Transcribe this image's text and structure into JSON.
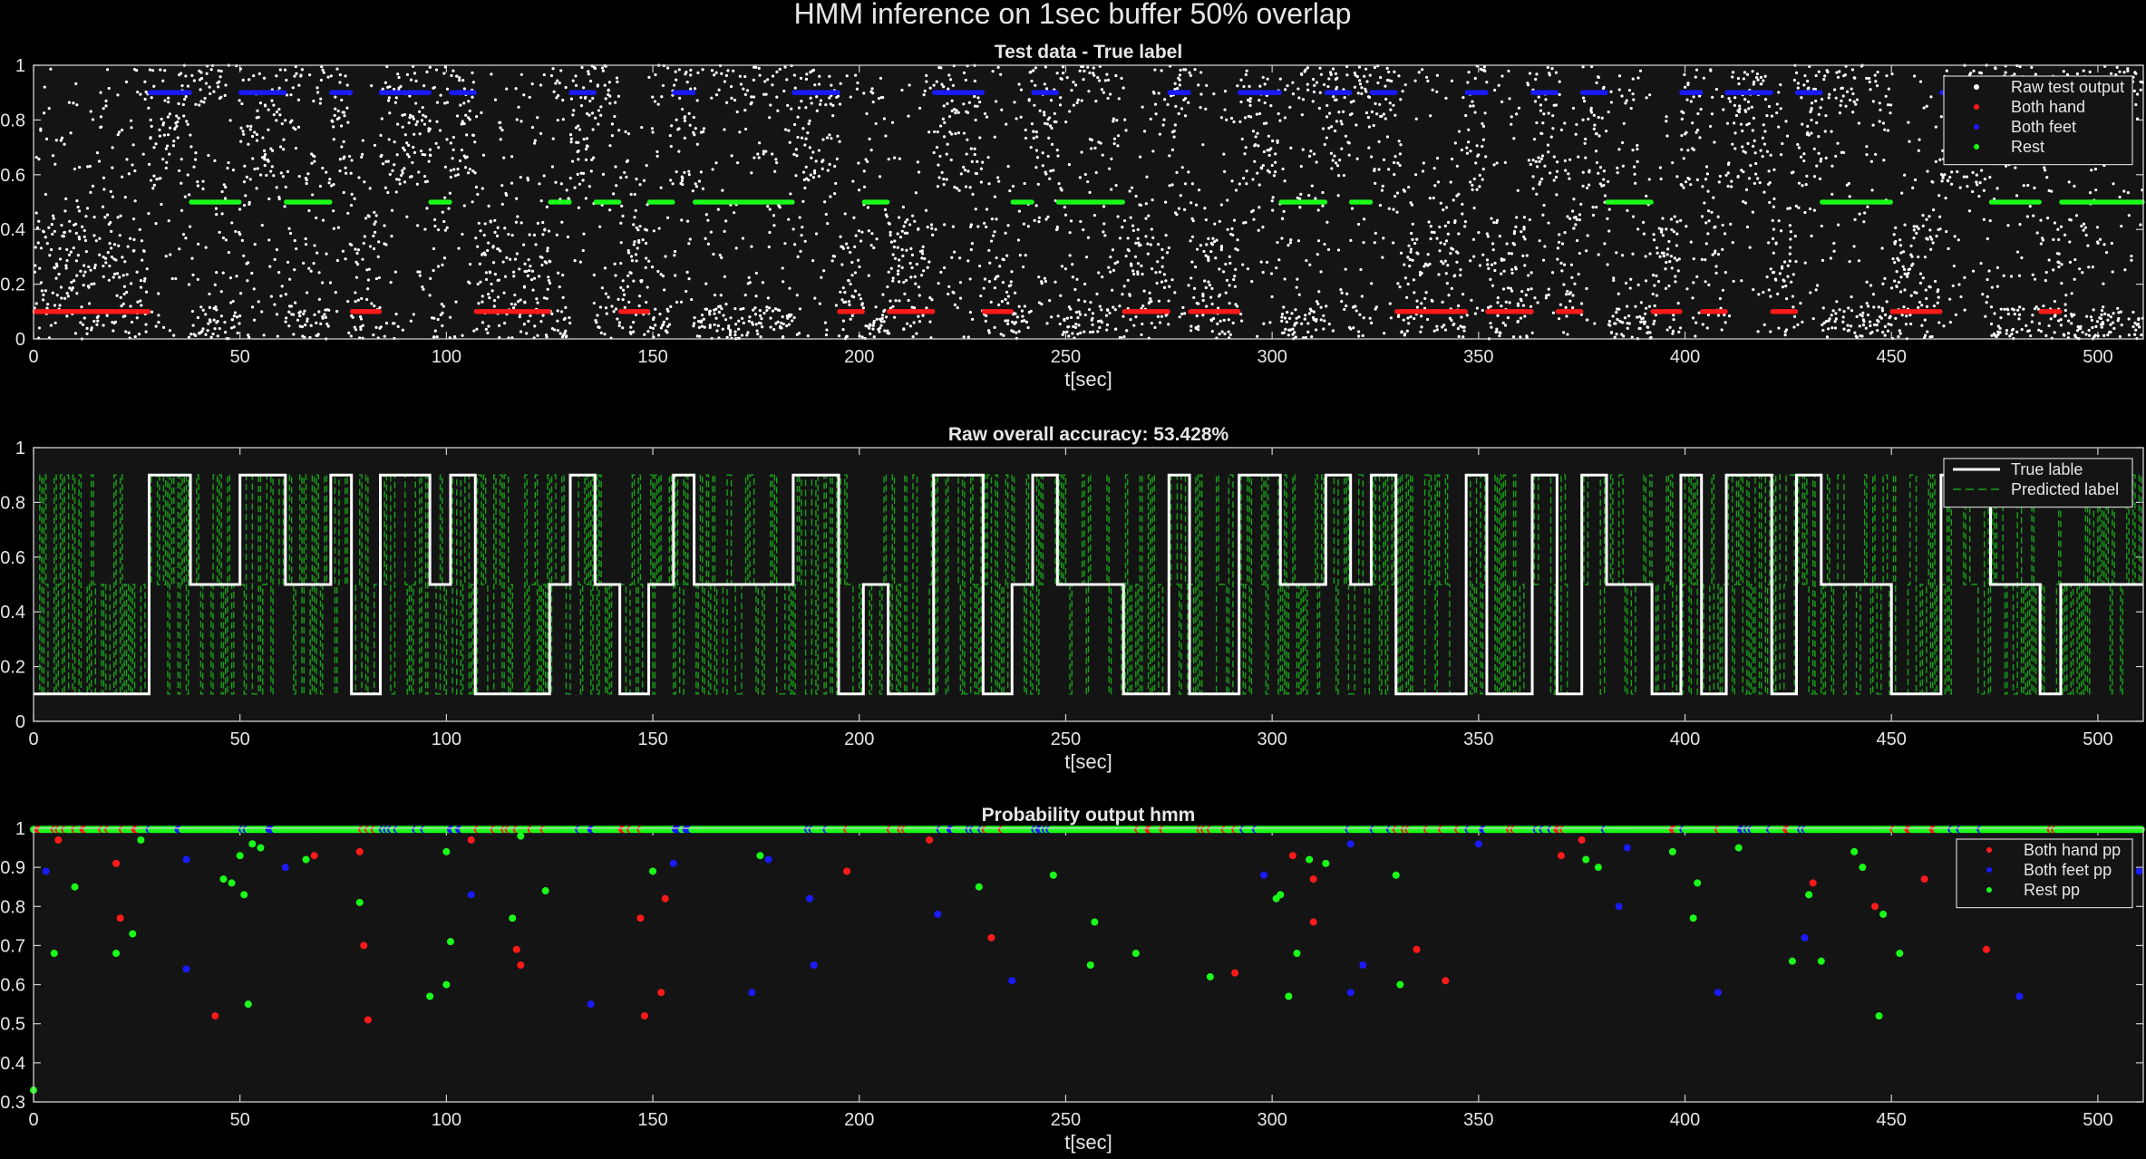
{
  "figure": {
    "title": "HMM inference on 1sec buffer 50% overlap",
    "background": "#000000",
    "axes_background": "#141414",
    "axes_color": "#cfcfcf",
    "text_color": "#e6e6e6"
  },
  "chart_data": [
    {
      "type": "scatter",
      "title": "Test data - True label",
      "xlabel": "t[sec]",
      "ylabel": "",
      "xlim": [
        0,
        511
      ],
      "ylim": [
        0,
        1
      ],
      "xticks": [
        0,
        50,
        100,
        150,
        200,
        250,
        300,
        350,
        400,
        450,
        500
      ],
      "yticks": [
        0,
        0.2,
        0.4,
        0.6,
        0.8,
        1
      ],
      "ytick_labels": [
        "0",
        "0.2",
        "0.4",
        "0.6",
        "0.8",
        "1"
      ],
      "grid": false,
      "legend_position": "top-right",
      "label_values": {
        "Both hand": 0.1,
        "Both feet": 0.9,
        "Rest": 0.5
      },
      "segments": [
        {
          "label": "Both hand",
          "start": 0,
          "end": 28
        },
        {
          "label": "Both feet",
          "start": 28,
          "end": 38
        },
        {
          "label": "Rest",
          "start": 38,
          "end": 50
        },
        {
          "label": "Both feet",
          "start": 50,
          "end": 61
        },
        {
          "label": "Rest",
          "start": 61,
          "end": 72
        },
        {
          "label": "Both feet",
          "start": 72,
          "end": 77
        },
        {
          "label": "Both hand",
          "start": 77,
          "end": 84
        },
        {
          "label": "Both feet",
          "start": 84,
          "end": 96
        },
        {
          "label": "Rest",
          "start": 96,
          "end": 101
        },
        {
          "label": "Both feet",
          "start": 101,
          "end": 107
        },
        {
          "label": "Both hand",
          "start": 107,
          "end": 125
        },
        {
          "label": "Rest",
          "start": 125,
          "end": 130
        },
        {
          "label": "Both feet",
          "start": 130,
          "end": 136
        },
        {
          "label": "Rest",
          "start": 136,
          "end": 142
        },
        {
          "label": "Both hand",
          "start": 142,
          "end": 149
        },
        {
          "label": "Rest",
          "start": 149,
          "end": 155
        },
        {
          "label": "Both feet",
          "start": 155,
          "end": 160
        },
        {
          "label": "Rest",
          "start": 160,
          "end": 184
        },
        {
          "label": "Both feet",
          "start": 184,
          "end": 195
        },
        {
          "label": "Both hand",
          "start": 195,
          "end": 201
        },
        {
          "label": "Rest",
          "start": 201,
          "end": 207
        },
        {
          "label": "Both hand",
          "start": 207,
          "end": 218
        },
        {
          "label": "Both feet",
          "start": 218,
          "end": 230
        },
        {
          "label": "Both hand",
          "start": 230,
          "end": 237
        },
        {
          "label": "Rest",
          "start": 237,
          "end": 242
        },
        {
          "label": "Both feet",
          "start": 242,
          "end": 248
        },
        {
          "label": "Rest",
          "start": 248,
          "end": 264
        },
        {
          "label": "Both hand",
          "start": 264,
          "end": 275
        },
        {
          "label": "Both feet",
          "start": 275,
          "end": 280
        },
        {
          "label": "Both hand",
          "start": 280,
          "end": 292
        },
        {
          "label": "Both feet",
          "start": 292,
          "end": 302
        },
        {
          "label": "Rest",
          "start": 302,
          "end": 313
        },
        {
          "label": "Both feet",
          "start": 313,
          "end": 319
        },
        {
          "label": "Rest",
          "start": 319,
          "end": 324
        },
        {
          "label": "Both feet",
          "start": 324,
          "end": 330
        },
        {
          "label": "Both hand",
          "start": 330,
          "end": 347
        },
        {
          "label": "Both feet",
          "start": 347,
          "end": 352
        },
        {
          "label": "Both hand",
          "start": 352,
          "end": 363
        },
        {
          "label": "Both feet",
          "start": 363,
          "end": 369
        },
        {
          "label": "Both hand",
          "start": 369,
          "end": 375
        },
        {
          "label": "Both feet",
          "start": 375,
          "end": 381
        },
        {
          "label": "Rest",
          "start": 381,
          "end": 392
        },
        {
          "label": "Both hand",
          "start": 392,
          "end": 399
        },
        {
          "label": "Both feet",
          "start": 399,
          "end": 404
        },
        {
          "label": "Both hand",
          "start": 404,
          "end": 410
        },
        {
          "label": "Both feet",
          "start": 410,
          "end": 421
        },
        {
          "label": "Both hand",
          "start": 421,
          "end": 427
        },
        {
          "label": "Both feet",
          "start": 427,
          "end": 433
        },
        {
          "label": "Rest",
          "start": 433,
          "end": 450
        },
        {
          "label": "Both hand",
          "start": 450,
          "end": 462
        },
        {
          "label": "Both feet",
          "start": 462,
          "end": 474
        },
        {
          "label": "Rest",
          "start": 474,
          "end": 486
        },
        {
          "label": "Both hand",
          "start": 486,
          "end": 491
        },
        {
          "label": "Rest",
          "start": 491,
          "end": 511
        }
      ],
      "series": [
        {
          "name": "Raw test output",
          "color": "#ffffff",
          "marker": "dot",
          "description_values": "dense random outputs in [0,1]"
        },
        {
          "name": "Both hand",
          "color": "#ff1a1a",
          "marker": "dot"
        },
        {
          "name": "Both feet",
          "color": "#1a1aff",
          "marker": "dot"
        },
        {
          "name": "Rest",
          "color": "#1aff1a",
          "marker": "dot"
        }
      ]
    },
    {
      "type": "line",
      "title": "Raw overall accuracy: 53.428%",
      "xlabel": "t[sec]",
      "ylabel": "",
      "xlim": [
        0,
        511
      ],
      "ylim": [
        0,
        1
      ],
      "xticks": [
        0,
        50,
        100,
        150,
        200,
        250,
        300,
        350,
        400,
        450,
        500
      ],
      "yticks": [
        0,
        0.2,
        0.4,
        0.6,
        0.8,
        1
      ],
      "ytick_labels": [
        "0",
        "0.2",
        "0.4",
        "0.6",
        "0.8",
        "1"
      ],
      "grid": false,
      "legend_position": "top-right",
      "series": [
        {
          "name": "True lable",
          "color": "#ffffff",
          "style": "solid"
        },
        {
          "name": "Predicted label",
          "color": "#1aa01a",
          "style": "dashed"
        }
      ]
    },
    {
      "type": "scatter",
      "title": "Probability output hmm",
      "xlabel": "t[sec]",
      "ylabel": "",
      "xlim": [
        0,
        511
      ],
      "ylim": [
        0.3,
        1
      ],
      "xticks": [
        0,
        50,
        100,
        150,
        200,
        250,
        300,
        350,
        400,
        450,
        500
      ],
      "yticks": [
        0.3,
        0.4,
        0.5,
        0.6,
        0.7,
        0.8,
        0.9,
        1
      ],
      "ytick_labels": [
        "0.3",
        "0.4",
        "0.5",
        "0.6",
        "0.7",
        "0.8",
        "0.9",
        "1"
      ],
      "grid": false,
      "legend_position": "top-right",
      "series": [
        {
          "name": "Both hand pp",
          "color": "#ff1a1a",
          "marker": "dot"
        },
        {
          "name": "Both feet pp",
          "color": "#1a1aff",
          "marker": "dot"
        },
        {
          "name": "Rest pp",
          "color": "#1aff1a",
          "marker": "dot"
        }
      ],
      "low_points": [
        {
          "x": 0,
          "y": 0.33,
          "s": "Rest pp"
        },
        {
          "x": 3,
          "y": 0.89,
          "s": "Both feet pp"
        },
        {
          "x": 5,
          "y": 0.68,
          "s": "Rest pp"
        },
        {
          "x": 6,
          "y": 0.97,
          "s": "Both hand pp"
        },
        {
          "x": 10,
          "y": 0.85,
          "s": "Rest pp"
        },
        {
          "x": 20,
          "y": 0.91,
          "s": "Both hand pp"
        },
        {
          "x": 21,
          "y": 0.77,
          "s": "Both hand pp"
        },
        {
          "x": 20,
          "y": 0.68,
          "s": "Rest pp"
        },
        {
          "x": 24,
          "y": 0.73,
          "s": "Rest pp"
        },
        {
          "x": 26,
          "y": 0.97,
          "s": "Rest pp"
        },
        {
          "x": 37,
          "y": 0.64,
          "s": "Both feet pp"
        },
        {
          "x": 37,
          "y": 0.92,
          "s": "Both feet pp"
        },
        {
          "x": 44,
          "y": 0.52,
          "s": "Both hand pp"
        },
        {
          "x": 46,
          "y": 0.87,
          "s": "Rest pp"
        },
        {
          "x": 48,
          "y": 0.86,
          "s": "Rest pp"
        },
        {
          "x": 50,
          "y": 0.93,
          "s": "Rest pp"
        },
        {
          "x": 51,
          "y": 0.83,
          "s": "Rest pp"
        },
        {
          "x": 52,
          "y": 0.55,
          "s": "Rest pp"
        },
        {
          "x": 53,
          "y": 0.96,
          "s": "Rest pp"
        },
        {
          "x": 55,
          "y": 0.95,
          "s": "Rest pp"
        },
        {
          "x": 61,
          "y": 0.9,
          "s": "Both feet pp"
        },
        {
          "x": 66,
          "y": 0.92,
          "s": "Rest pp"
        },
        {
          "x": 68,
          "y": 0.93,
          "s": "Both hand pp"
        },
        {
          "x": 79,
          "y": 0.94,
          "s": "Both hand pp"
        },
        {
          "x": 79,
          "y": 0.81,
          "s": "Rest pp"
        },
        {
          "x": 80,
          "y": 0.7,
          "s": "Both hand pp"
        },
        {
          "x": 81,
          "y": 0.51,
          "s": "Both hand pp"
        },
        {
          "x": 96,
          "y": 0.57,
          "s": "Rest pp"
        },
        {
          "x": 100,
          "y": 0.6,
          "s": "Rest pp"
        },
        {
          "x": 100,
          "y": 0.94,
          "s": "Rest pp"
        },
        {
          "x": 101,
          "y": 0.71,
          "s": "Rest pp"
        },
        {
          "x": 106,
          "y": 0.83,
          "s": "Both feet pp"
        },
        {
          "x": 106,
          "y": 0.97,
          "s": "Both hand pp"
        },
        {
          "x": 116,
          "y": 0.77,
          "s": "Rest pp"
        },
        {
          "x": 117,
          "y": 0.69,
          "s": "Both hand pp"
        },
        {
          "x": 118,
          "y": 0.65,
          "s": "Both hand pp"
        },
        {
          "x": 118,
          "y": 0.98,
          "s": "Rest pp"
        },
        {
          "x": 124,
          "y": 0.84,
          "s": "Rest pp"
        },
        {
          "x": 135,
          "y": 0.55,
          "s": "Both feet pp"
        },
        {
          "x": 147,
          "y": 0.77,
          "s": "Both hand pp"
        },
        {
          "x": 148,
          "y": 0.52,
          "s": "Both hand pp"
        },
        {
          "x": 150,
          "y": 0.89,
          "s": "Rest pp"
        },
        {
          "x": 152,
          "y": 0.58,
          "s": "Both hand pp"
        },
        {
          "x": 153,
          "y": 0.82,
          "s": "Both hand pp"
        },
        {
          "x": 155,
          "y": 0.91,
          "s": "Both feet pp"
        },
        {
          "x": 174,
          "y": 0.58,
          "s": "Both feet pp"
        },
        {
          "x": 176,
          "y": 0.93,
          "s": "Rest pp"
        },
        {
          "x": 178,
          "y": 0.92,
          "s": "Both feet pp"
        },
        {
          "x": 188,
          "y": 0.82,
          "s": "Both feet pp"
        },
        {
          "x": 189,
          "y": 0.65,
          "s": "Both feet pp"
        },
        {
          "x": 197,
          "y": 0.89,
          "s": "Both hand pp"
        },
        {
          "x": 217,
          "y": 0.97,
          "s": "Both hand pp"
        },
        {
          "x": 219,
          "y": 0.78,
          "s": "Both feet pp"
        },
        {
          "x": 229,
          "y": 0.85,
          "s": "Rest pp"
        },
        {
          "x": 232,
          "y": 0.72,
          "s": "Both hand pp"
        },
        {
          "x": 237,
          "y": 0.61,
          "s": "Both feet pp"
        },
        {
          "x": 247,
          "y": 0.88,
          "s": "Rest pp"
        },
        {
          "x": 256,
          "y": 0.65,
          "s": "Rest pp"
        },
        {
          "x": 257,
          "y": 0.76,
          "s": "Rest pp"
        },
        {
          "x": 267,
          "y": 0.68,
          "s": "Rest pp"
        },
        {
          "x": 285,
          "y": 0.62,
          "s": "Rest pp"
        },
        {
          "x": 291,
          "y": 0.63,
          "s": "Both hand pp"
        },
        {
          "x": 298,
          "y": 0.88,
          "s": "Both feet pp"
        },
        {
          "x": 301,
          "y": 0.82,
          "s": "Rest pp"
        },
        {
          "x": 302,
          "y": 0.83,
          "s": "Rest pp"
        },
        {
          "x": 304,
          "y": 0.57,
          "s": "Rest pp"
        },
        {
          "x": 305,
          "y": 0.93,
          "s": "Both hand pp"
        },
        {
          "x": 306,
          "y": 0.68,
          "s": "Rest pp"
        },
        {
          "x": 309,
          "y": 0.92,
          "s": "Rest pp"
        },
        {
          "x": 310,
          "y": 0.87,
          "s": "Both hand pp"
        },
        {
          "x": 310,
          "y": 0.76,
          "s": "Both hand pp"
        },
        {
          "x": 313,
          "y": 0.91,
          "s": "Rest pp"
        },
        {
          "x": 319,
          "y": 0.58,
          "s": "Both feet pp"
        },
        {
          "x": 319,
          "y": 0.96,
          "s": "Both feet pp"
        },
        {
          "x": 322,
          "y": 0.65,
          "s": "Both feet pp"
        },
        {
          "x": 330,
          "y": 0.88,
          "s": "Rest pp"
        },
        {
          "x": 331,
          "y": 0.6,
          "s": "Rest pp"
        },
        {
          "x": 335,
          "y": 0.69,
          "s": "Both hand pp"
        },
        {
          "x": 342,
          "y": 0.61,
          "s": "Both hand pp"
        },
        {
          "x": 350,
          "y": 0.96,
          "s": "Both feet pp"
        },
        {
          "x": 370,
          "y": 0.93,
          "s": "Both hand pp"
        },
        {
          "x": 375,
          "y": 0.97,
          "s": "Both hand pp"
        },
        {
          "x": 376,
          "y": 0.92,
          "s": "Rest pp"
        },
        {
          "x": 379,
          "y": 0.9,
          "s": "Rest pp"
        },
        {
          "x": 384,
          "y": 0.8,
          "s": "Both feet pp"
        },
        {
          "x": 386,
          "y": 0.95,
          "s": "Both feet pp"
        },
        {
          "x": 397,
          "y": 0.94,
          "s": "Rest pp"
        },
        {
          "x": 402,
          "y": 0.77,
          "s": "Rest pp"
        },
        {
          "x": 403,
          "y": 0.86,
          "s": "Rest pp"
        },
        {
          "x": 408,
          "y": 0.58,
          "s": "Both feet pp"
        },
        {
          "x": 413,
          "y": 0.95,
          "s": "Rest pp"
        },
        {
          "x": 426,
          "y": 0.66,
          "s": "Rest pp"
        },
        {
          "x": 429,
          "y": 0.72,
          "s": "Both feet pp"
        },
        {
          "x": 430,
          "y": 0.83,
          "s": "Rest pp"
        },
        {
          "x": 431,
          "y": 0.86,
          "s": "Both hand pp"
        },
        {
          "x": 433,
          "y": 0.66,
          "s": "Rest pp"
        },
        {
          "x": 441,
          "y": 0.94,
          "s": "Rest pp"
        },
        {
          "x": 443,
          "y": 0.9,
          "s": "Rest pp"
        },
        {
          "x": 446,
          "y": 0.8,
          "s": "Both hand pp"
        },
        {
          "x": 447,
          "y": 0.52,
          "s": "Rest pp"
        },
        {
          "x": 448,
          "y": 0.78,
          "s": "Rest pp"
        },
        {
          "x": 452,
          "y": 0.68,
          "s": "Rest pp"
        },
        {
          "x": 458,
          "y": 0.87,
          "s": "Both hand pp"
        },
        {
          "x": 473,
          "y": 0.69,
          "s": "Both hand pp"
        },
        {
          "x": 481,
          "y": 0.57,
          "s": "Both feet pp"
        },
        {
          "x": 510,
          "y": 0.89,
          "s": "Both feet pp"
        }
      ]
    }
  ]
}
